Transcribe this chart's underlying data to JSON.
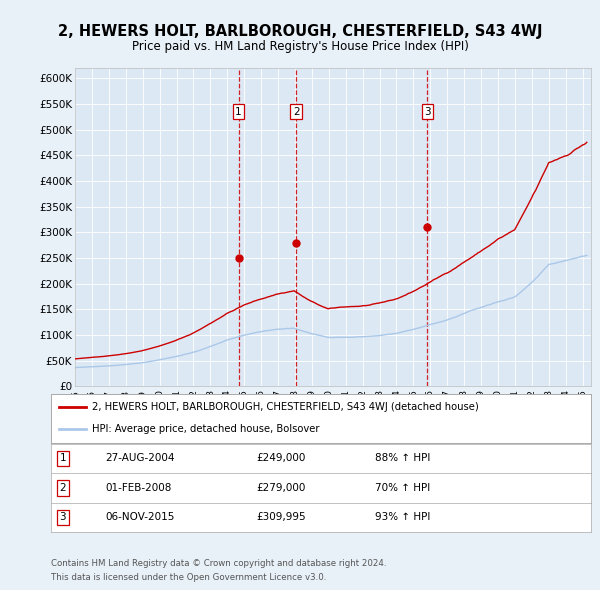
{
  "title": "2, HEWERS HOLT, BARLBOROUGH, CHESTERFIELD, S43 4WJ",
  "subtitle": "Price paid vs. HM Land Registry's House Price Index (HPI)",
  "bg_color": "#e8f0f8",
  "plot_bg_color": "#dde8f5",
  "ylabel_ticks": [
    "£0",
    "£50K",
    "£100K",
    "£150K",
    "£200K",
    "£250K",
    "£300K",
    "£350K",
    "£400K",
    "£450K",
    "£500K",
    "£550K",
    "£600K"
  ],
  "ytick_values": [
    0,
    50000,
    100000,
    150000,
    200000,
    250000,
    300000,
    350000,
    400000,
    450000,
    500000,
    550000,
    600000
  ],
  "sale_prices": [
    249000,
    279000,
    309995
  ],
  "sale_labels": [
    "1",
    "2",
    "3"
  ],
  "legend_line1": "2, HEWERS HOLT, BARLBOROUGH, CHESTERFIELD, S43 4WJ (detached house)",
  "legend_line2": "HPI: Average price, detached house, Bolsover",
  "table_rows": [
    [
      "1",
      "27-AUG-2004",
      "£249,000",
      "88% ↑ HPI"
    ],
    [
      "2",
      "01-FEB-2008",
      "£279,000",
      "70% ↑ HPI"
    ],
    [
      "3",
      "06-NOV-2015",
      "£309,995",
      "93% ↑ HPI"
    ]
  ],
  "footer_line1": "Contains HM Land Registry data © Crown copyright and database right 2024.",
  "footer_line2": "This data is licensed under the Open Government Licence v3.0.",
  "red_line_color": "#cc0000",
  "blue_line_color": "#aac8e8",
  "dashed_line_color": "#cc0000"
}
